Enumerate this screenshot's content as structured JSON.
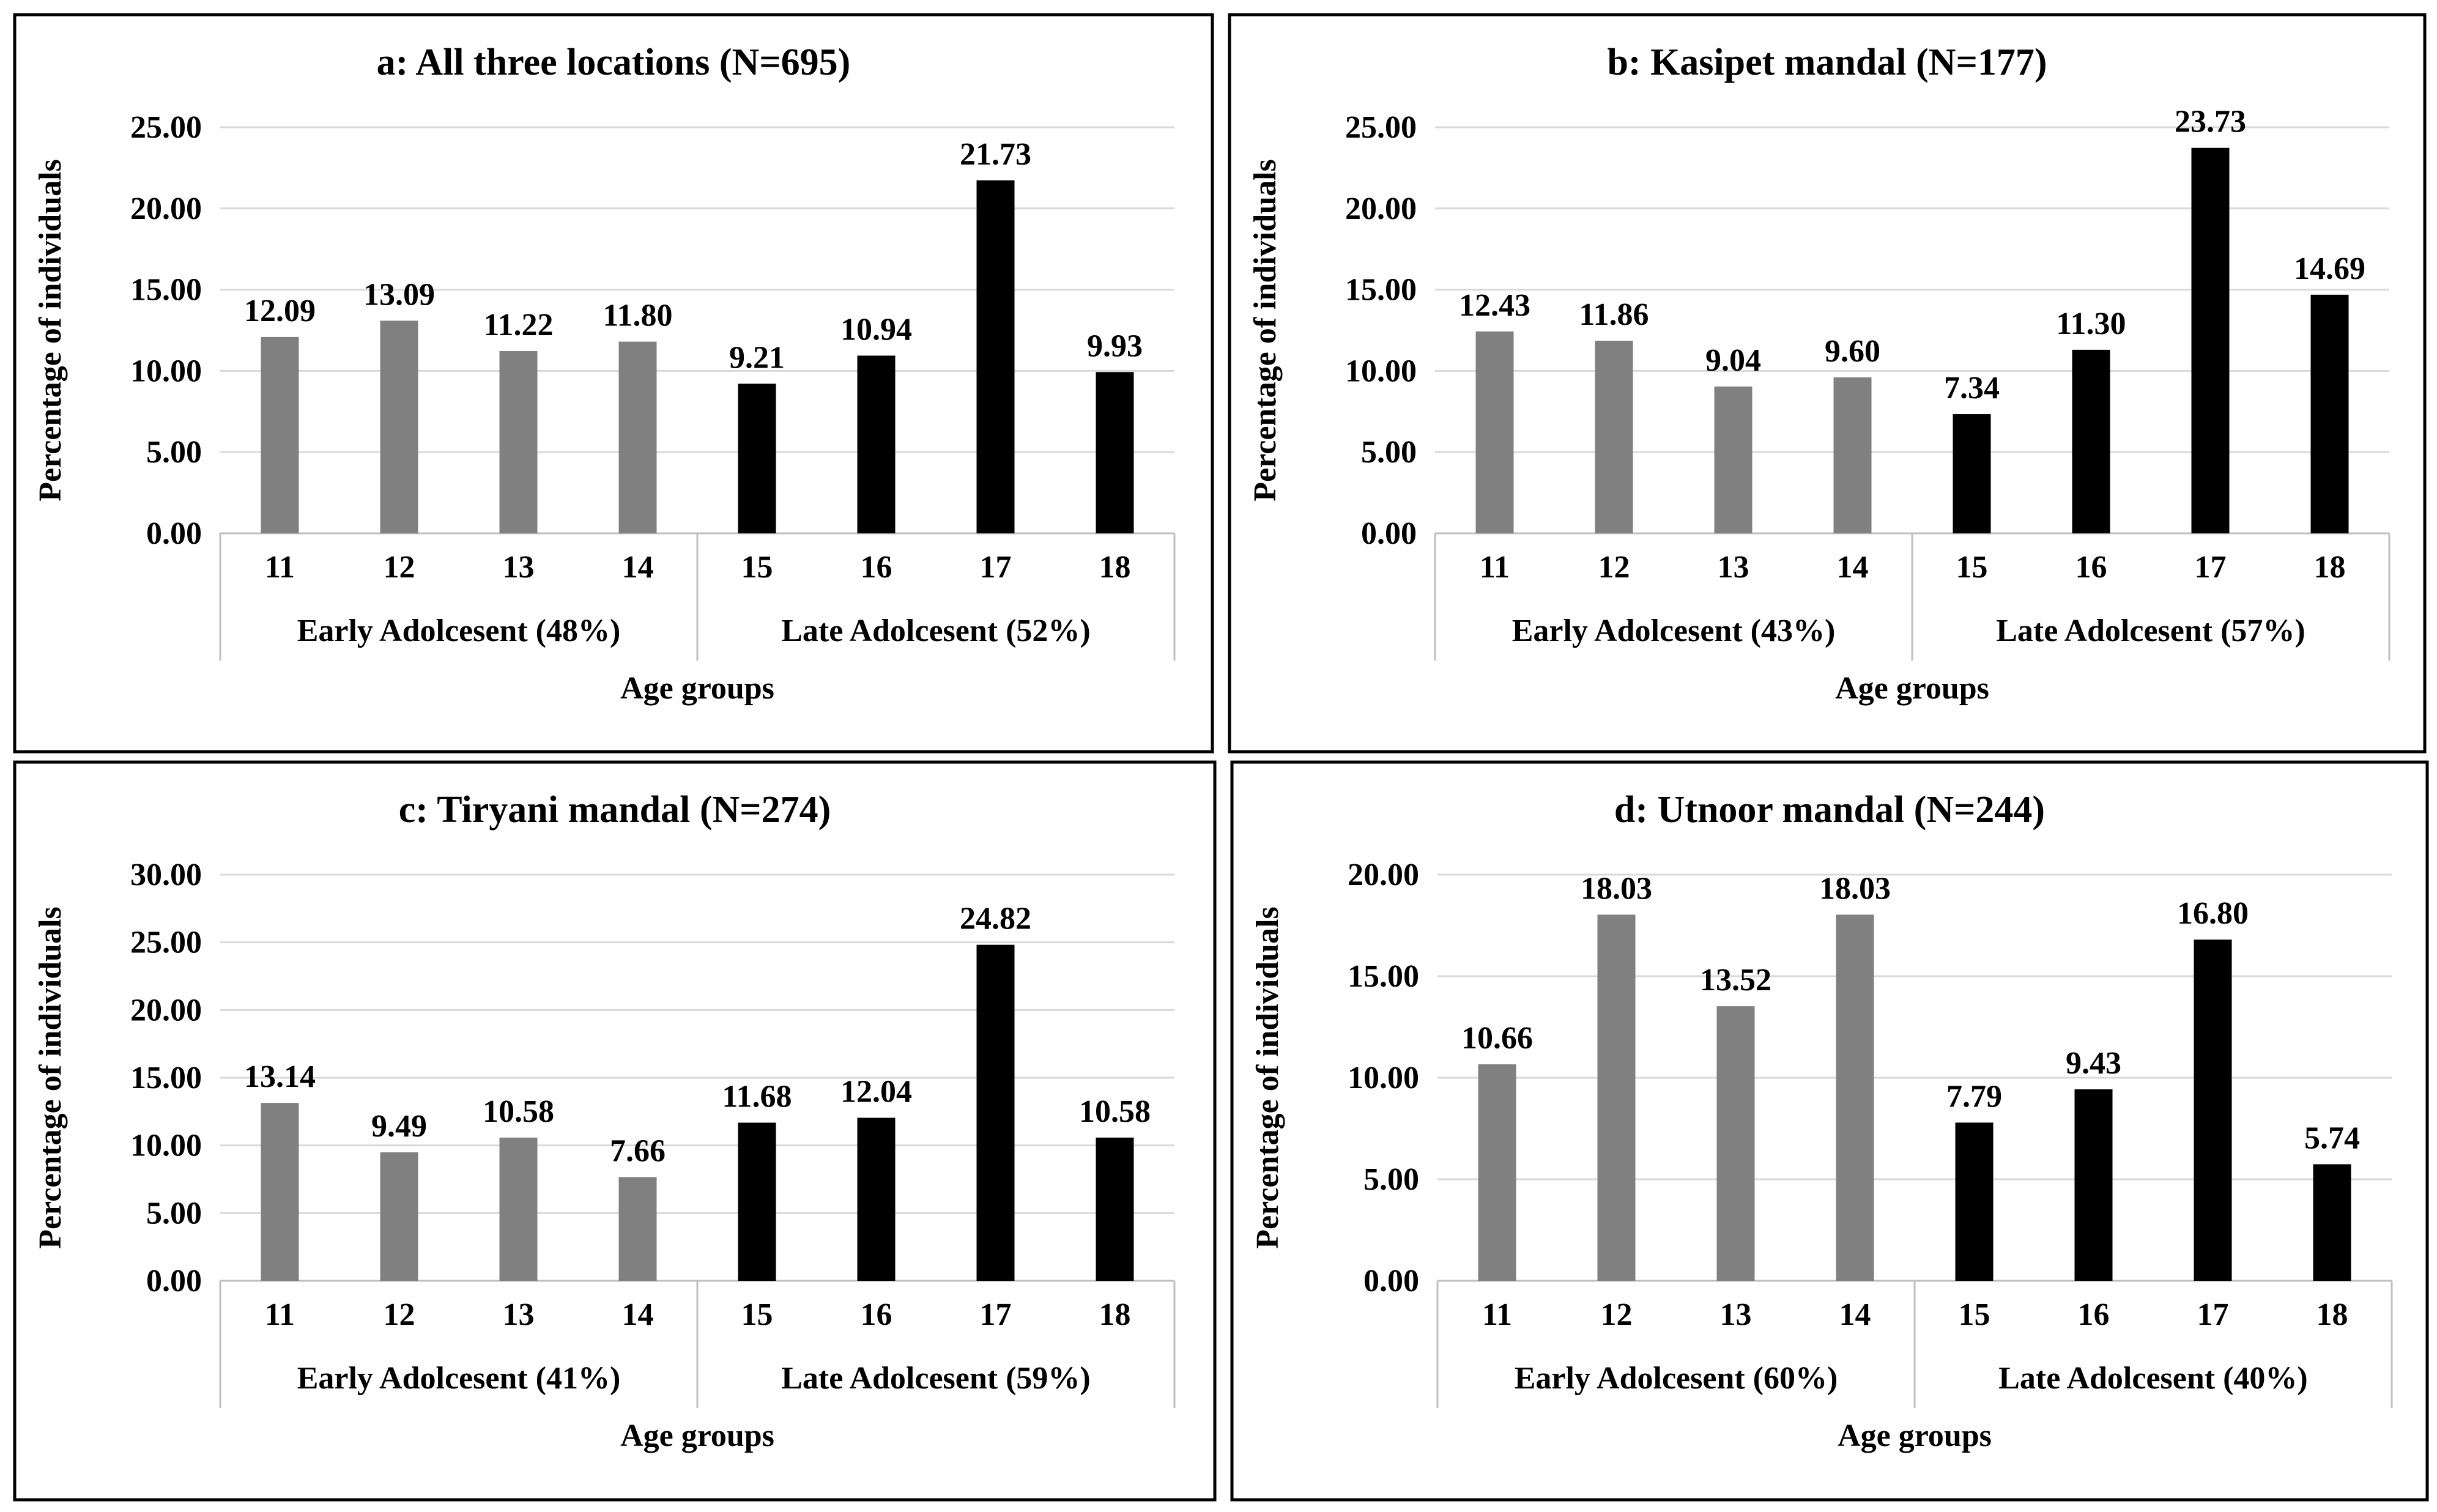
{
  "colors": {
    "early": "#808080",
    "late": "#000000"
  },
  "chart_data": [
    {
      "type": "bar",
      "title": "a: All three locations  (N=695)",
      "xlabel": "Age groups",
      "ylabel": "Percentage of individuals",
      "ylim": [
        0,
        25
      ],
      "yticks": [
        "0.00",
        "5.00",
        "10.00",
        "15.00",
        "20.00",
        "25.00"
      ],
      "categories": [
        "11",
        "12",
        "13",
        "14",
        "15",
        "16",
        "17",
        "18"
      ],
      "values": [
        12.09,
        13.09,
        11.22,
        11.8,
        9.21,
        10.94,
        21.73,
        9.93
      ],
      "value_labels": [
        "12.09",
        "13.09",
        "11.22",
        "11.80",
        "9.21",
        "10.94",
        "21.73",
        "9.93"
      ],
      "groups": [
        {
          "label": "Early Adolcesent (48%)",
          "series": "early"
        },
        {
          "label": "Late Adolcesent (52%)",
          "series": "late"
        }
      ]
    },
    {
      "type": "bar",
      "title": "b: Kasipet mandal  (N=177)",
      "xlabel": "Age groups",
      "ylabel": "Percentage of individuals",
      "ylim": [
        0,
        25
      ],
      "yticks": [
        "0.00",
        "5.00",
        "10.00",
        "15.00",
        "20.00",
        "25.00"
      ],
      "categories": [
        "11",
        "12",
        "13",
        "14",
        "15",
        "16",
        "17",
        "18"
      ],
      "values": [
        12.43,
        11.86,
        9.04,
        9.6,
        7.34,
        11.3,
        23.73,
        14.69
      ],
      "value_labels": [
        "12.43",
        "11.86",
        "9.04",
        "9.60",
        "7.34",
        "11.30",
        "23.73",
        "14.69"
      ],
      "groups": [
        {
          "label": "Early Adolcesent (43%)",
          "series": "early"
        },
        {
          "label": "Late Adolcesent (57%)",
          "series": "late"
        }
      ]
    },
    {
      "type": "bar",
      "title": "c: Tiryani  mandal  (N=274)",
      "xlabel": "Age groups",
      "ylabel": "Percentage of individuals",
      "ylim": [
        0,
        30
      ],
      "yticks": [
        "0.00",
        "5.00",
        "10.00",
        "15.00",
        "20.00",
        "25.00",
        "30.00"
      ],
      "categories": [
        "11",
        "12",
        "13",
        "14",
        "15",
        "16",
        "17",
        "18"
      ],
      "values": [
        13.14,
        9.49,
        10.58,
        7.66,
        11.68,
        12.04,
        24.82,
        10.58
      ],
      "value_labels": [
        "13.14",
        "9.49",
        "10.58",
        "7.66",
        "11.68",
        "12.04",
        "24.82",
        "10.58"
      ],
      "groups": [
        {
          "label": "Early Adolcesent (41%)",
          "series": "early"
        },
        {
          "label": "Late Adolcesent (59%)",
          "series": "late"
        }
      ]
    },
    {
      "type": "bar",
      "title": "d: Utnoor mandal  (N=244)",
      "xlabel": "Age groups",
      "ylabel": "Percentage of individuals",
      "ylim": [
        0,
        20
      ],
      "yticks": [
        "0.00",
        "5.00",
        "10.00",
        "15.00",
        "20.00"
      ],
      "categories": [
        "11",
        "12",
        "13",
        "14",
        "15",
        "16",
        "17",
        "18"
      ],
      "values": [
        10.66,
        18.03,
        13.52,
        18.03,
        7.79,
        9.43,
        16.8,
        5.74
      ],
      "value_labels": [
        "10.66",
        "18.03",
        "13.52",
        "18.03",
        "7.79",
        "9.43",
        "16.80",
        "5.74"
      ],
      "groups": [
        {
          "label": "Early Adolcesent (60%)",
          "series": "early"
        },
        {
          "label": "Late Adolcesent (40%)",
          "series": "late"
        }
      ]
    }
  ]
}
